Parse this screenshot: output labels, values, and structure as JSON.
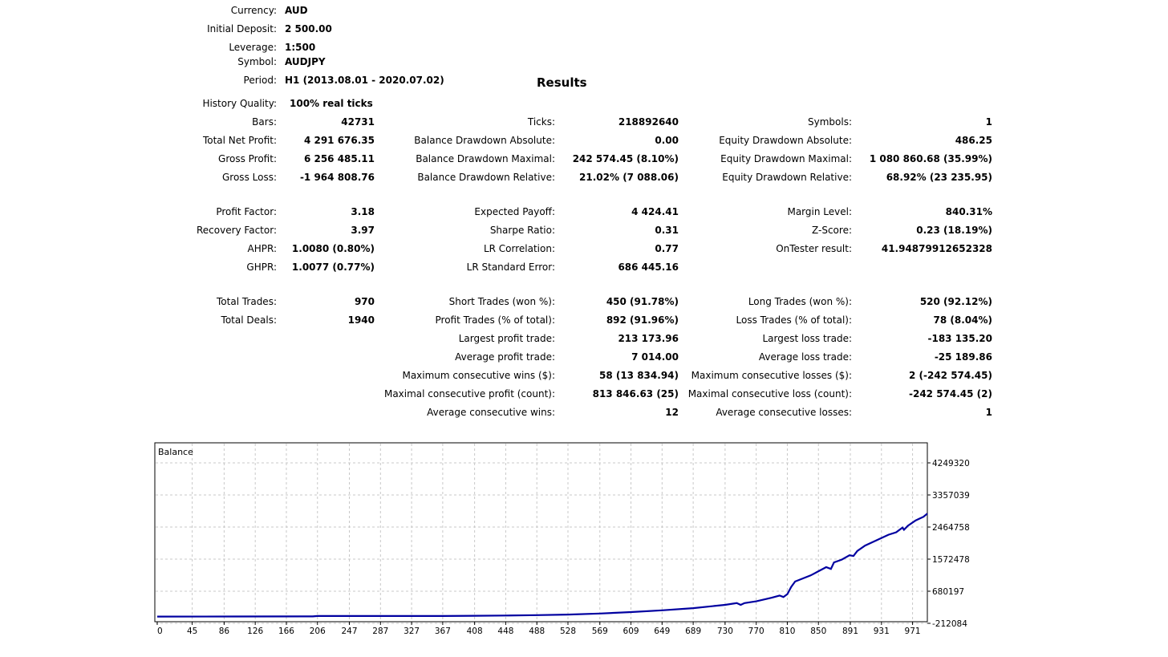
{
  "header": {
    "currency_label": "Currency:",
    "currency": "AUD",
    "deposit_label": "Initial Deposit:",
    "deposit": "2 500.00",
    "leverage_label": "Leverage:",
    "leverage": "1:500",
    "symbol_label": "Symbol:",
    "symbol": "AUDJPY",
    "period_label": "Period:",
    "period": "H1 (2013.08.01 - 2020.07.02)",
    "results_title": "Results",
    "quality_label": "History Quality:",
    "quality": "100% real ticks"
  },
  "col1": [
    {
      "label": "Bars:",
      "value": "42731"
    },
    {
      "label": "Total Net Profit:",
      "value": "4 291 676.35"
    },
    {
      "label": "Gross Profit:",
      "value": "6 256 485.11"
    },
    {
      "label": "Gross Loss:",
      "value": "-1 964 808.76"
    },
    {
      "label": "Profit Factor:",
      "value": "3.18"
    },
    {
      "label": "Recovery Factor:",
      "value": "3.97"
    },
    {
      "label": "AHPR:",
      "value": "1.0080 (0.80%)"
    },
    {
      "label": "GHPR:",
      "value": "1.0077 (0.77%)"
    },
    {
      "label": "Total Trades:",
      "value": "970"
    },
    {
      "label": "Total Deals:",
      "value": "1940"
    }
  ],
  "col2": [
    {
      "label": "Ticks:",
      "value": "218892640"
    },
    {
      "label": "Balance Drawdown Absolute:",
      "value": "0.00"
    },
    {
      "label": "Balance Drawdown Maximal:",
      "value": "242 574.45 (8.10%)"
    },
    {
      "label": "Balance Drawdown Relative:",
      "value": "21.02% (7 088.06)"
    },
    {
      "label": "Expected Payoff:",
      "value": "4 424.41"
    },
    {
      "label": "Sharpe Ratio:",
      "value": "0.31"
    },
    {
      "label": "LR Correlation:",
      "value": "0.77"
    },
    {
      "label": "LR Standard Error:",
      "value": "686 445.16"
    },
    {
      "label": "Short Trades (won %):",
      "value": "450 (91.78%)"
    },
    {
      "label": "Profit Trades (% of total):",
      "value": "892 (91.96%)"
    },
    {
      "label": "Largest profit trade:",
      "value": "213 173.96"
    },
    {
      "label": "Average profit trade:",
      "value": "7 014.00"
    },
    {
      "label": "Maximum consecutive wins ($):",
      "value": "58 (13 834.94)"
    },
    {
      "label": "Maximal consecutive profit (count):",
      "value": "813 846.63 (25)"
    },
    {
      "label": "Average consecutive wins:",
      "value": "12"
    }
  ],
  "col3": [
    {
      "label": "Symbols:",
      "value": "1"
    },
    {
      "label": "Equity Drawdown Absolute:",
      "value": "486.25"
    },
    {
      "label": "Equity Drawdown Maximal:",
      "value": "1 080 860.68 (35.99%)"
    },
    {
      "label": "Equity Drawdown Relative:",
      "value": "68.92% (23 235.95)"
    },
    {
      "label": "Margin Level:",
      "value": "840.31%"
    },
    {
      "label": "Z-Score:",
      "value": "0.23 (18.19%)"
    },
    {
      "label": "OnTester result:",
      "value": "41.94879912652328"
    },
    {
      "label": "Long Trades (won %):",
      "value": "520 (92.12%)"
    },
    {
      "label": "Loss Trades (% of total):",
      "value": "78 (8.04%)"
    },
    {
      "label": "Largest loss trade:",
      "value": "-183 135.20"
    },
    {
      "label": "Average loss trade:",
      "value": "-25 189.86"
    },
    {
      "label": "Maximum consecutive losses ($):",
      "value": "2 (-242 574.45)"
    },
    {
      "label": "Maximal consecutive loss (count):",
      "value": "-242 574.45 (2)"
    },
    {
      "label": "Average consecutive losses:",
      "value": "1"
    }
  ],
  "chart_data": {
    "type": "line",
    "title": "Balance",
    "x_ticks": [
      "0",
      "45",
      "86",
      "126",
      "166",
      "206",
      "247",
      "287",
      "327",
      "367",
      "408",
      "448",
      "488",
      "528",
      "569",
      "609",
      "649",
      "689",
      "730",
      "770",
      "810",
      "850",
      "891",
      "931",
      "971"
    ],
    "y_ticks": [
      "4249320",
      "3357039",
      "2464758",
      "1572478",
      "680197",
      "-212084"
    ],
    "xlim": [
      0,
      990
    ],
    "ylim": [
      -212084,
      4249320
    ],
    "grid": true,
    "line_color": "#0000a0",
    "series": [
      {
        "points": [
          [
            0,
            -25000
          ],
          [
            100,
            -23000
          ],
          [
            200,
            -20000
          ],
          [
            206,
            -10000
          ],
          [
            300,
            -10000
          ],
          [
            367,
            -8000
          ],
          [
            408,
            -2000
          ],
          [
            448,
            5000
          ],
          [
            488,
            15000
          ],
          [
            528,
            30000
          ],
          [
            569,
            60000
          ],
          [
            609,
            100000
          ],
          [
            649,
            150000
          ],
          [
            689,
            210000
          ],
          [
            730,
            300000
          ],
          [
            745,
            350000
          ],
          [
            750,
            300000
          ],
          [
            755,
            350000
          ],
          [
            770,
            400000
          ],
          [
            790,
            500000
          ],
          [
            800,
            560000
          ],
          [
            805,
            520000
          ],
          [
            810,
            600000
          ],
          [
            815,
            800000
          ],
          [
            820,
            950000
          ],
          [
            840,
            1120000
          ],
          [
            860,
            1350000
          ],
          [
            866,
            1300000
          ],
          [
            870,
            1480000
          ],
          [
            880,
            1560000
          ],
          [
            890,
            1680000
          ],
          [
            895,
            1660000
          ],
          [
            900,
            1800000
          ],
          [
            910,
            1950000
          ],
          [
            920,
            2050000
          ],
          [
            930,
            2150000
          ],
          [
            940,
            2250000
          ],
          [
            950,
            2320000
          ],
          [
            958,
            2450000
          ],
          [
            960,
            2390000
          ],
          [
            965,
            2500000
          ],
          [
            975,
            2650000
          ],
          [
            985,
            2750000
          ],
          [
            990,
            2840000
          ]
        ]
      }
    ]
  }
}
